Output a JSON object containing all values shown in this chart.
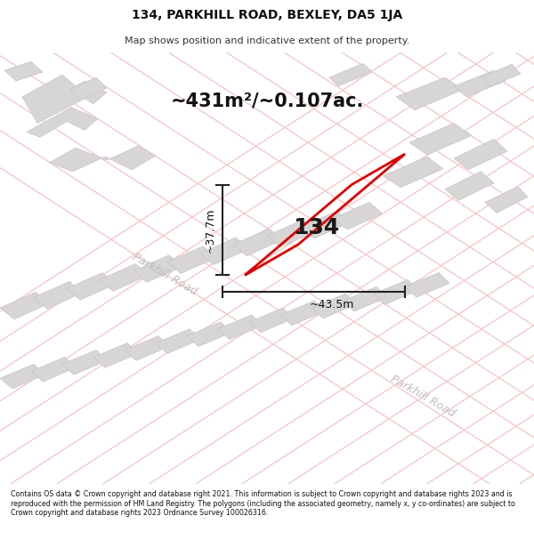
{
  "title": "134, PARKHILL ROAD, BEXLEY, DA5 1JA",
  "subtitle": "Map shows position and indicative extent of the property.",
  "area_text": "~431m²/~0.107ac.",
  "house_number": "134",
  "dim_width": "~43.5m",
  "dim_height": "~37.7m",
  "road_label1": "Parkhill Road",
  "road_label2": "Parkhill Road",
  "footer_text": "Contains OS data © Crown copyright and database right 2021. This information is subject to Crown copyright and database rights 2023 and is reproduced with the permission of HM Land Registry. The polygons (including the associated geometry, namely x, y co-ordinates) are subject to Crown copyright and database rights 2023 Ordnance Survey 100026316.",
  "bg_color": "#ffffff",
  "map_bg": "#f9f7f7",
  "plot_color": "#dd0000",
  "road_line_color": "#f5c5c5",
  "building_color": "#d8d5d5",
  "building_edge": "#c8c5c5",
  "dim_line_color": "#222222",
  "road_label_color": "#c0bcbc"
}
